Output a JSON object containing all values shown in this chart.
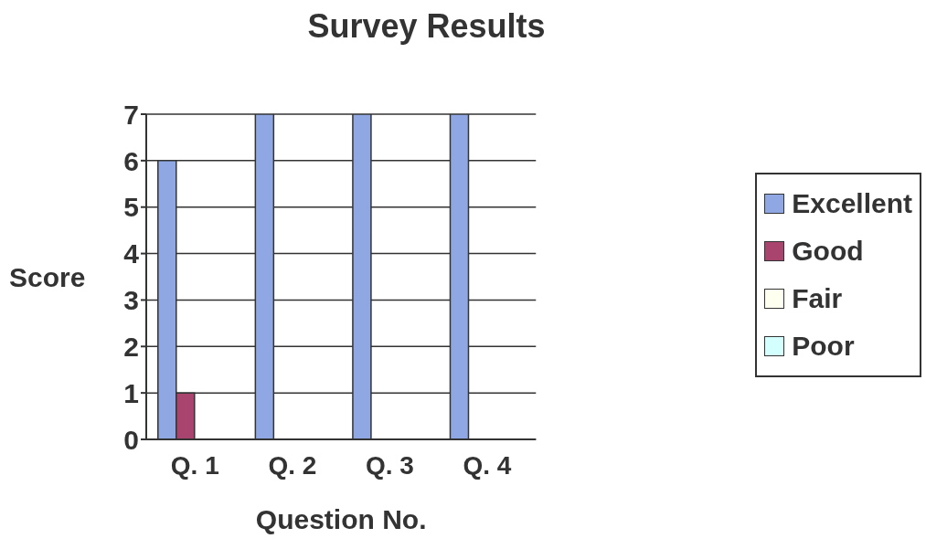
{
  "chart_data": {
    "type": "bar",
    "title": "Survey Results",
    "xlabel": "Question No.",
    "ylabel": "Score",
    "categories": [
      "Q. 1",
      "Q. 2",
      "Q. 3",
      "Q. 4"
    ],
    "series": [
      {
        "name": "Excellent",
        "color": "#8fa8e4",
        "values": [
          6,
          7,
          7,
          7
        ]
      },
      {
        "name": "Good",
        "color": "#a8446e",
        "values": [
          1,
          0,
          0,
          0
        ]
      },
      {
        "name": "Fair",
        "color": "#fffff0",
        "values": [
          0,
          0,
          0,
          0
        ]
      },
      {
        "name": "Poor",
        "color": "#d4ffff",
        "values": [
          0,
          0,
          0,
          0
        ]
      }
    ],
    "ylim": [
      0,
      7
    ],
    "yticks": [
      0,
      1,
      2,
      3,
      4,
      5,
      6,
      7
    ],
    "grid": "y",
    "legend": "right"
  }
}
